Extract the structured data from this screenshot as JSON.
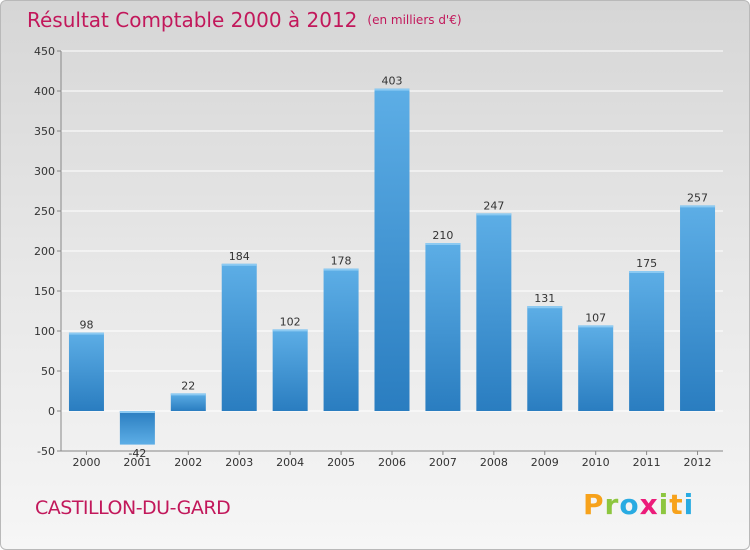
{
  "header": {
    "title": "Résultat Comptable 2000 à 2012",
    "subtitle": "(en milliers d'€)"
  },
  "footer": {
    "commune": "CASTILLON-DU-GARD",
    "logo": {
      "letters": [
        "P",
        "r",
        "o",
        "x",
        "i",
        "t",
        "i"
      ],
      "colors": [
        "#f7a21b",
        "#8dc63f",
        "#29abe2",
        "#ec1c7a",
        "#8dc63f",
        "#f7a21b",
        "#29abe2"
      ]
    }
  },
  "colors": {
    "title": "#c2185b",
    "bar_light": "#5daee6",
    "bar_dark": "#2a7dc0",
    "grid": "#ffffff"
  },
  "chart_data": {
    "type": "bar",
    "title": "Résultat Comptable 2000 à 2012",
    "subtitle": "(en milliers d'€)",
    "categories": [
      "2000",
      "2001",
      "2002",
      "2003",
      "2004",
      "2005",
      "2006",
      "2007",
      "2008",
      "2009",
      "2010",
      "2011",
      "2012"
    ],
    "values": [
      98,
      -42,
      22,
      184,
      102,
      178,
      403,
      210,
      247,
      131,
      107,
      175,
      257
    ],
    "yticks": [
      -50,
      0,
      50,
      100,
      150,
      200,
      250,
      300,
      350,
      400,
      450
    ],
    "ylim": [
      -50,
      450
    ],
    "xlabel": "",
    "ylabel": "",
    "grid": true,
    "legend": "none"
  }
}
